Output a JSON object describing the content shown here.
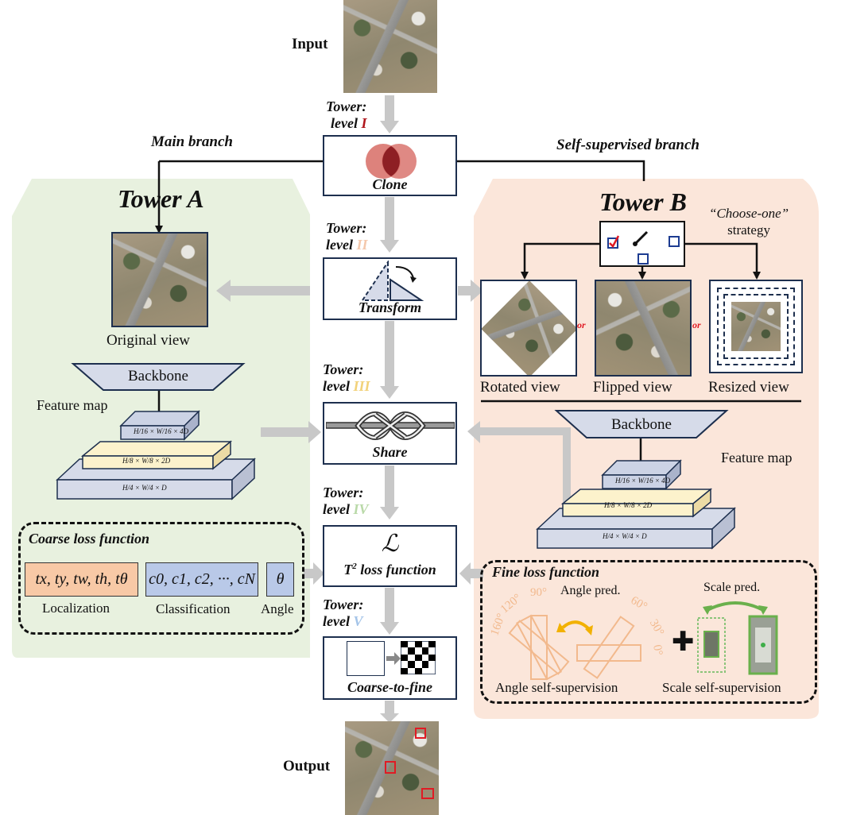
{
  "flow": {
    "input_label": "Input",
    "output_label": "Output",
    "levels": [
      {
        "prefix": "Tower:",
        "word": "level",
        "numeral": "I",
        "color": "#b0161c"
      },
      {
        "prefix": "Tower:",
        "word": "level",
        "numeral": "II",
        "color": "#f4c8ac"
      },
      {
        "prefix": "Tower:",
        "word": "level",
        "numeral": "III",
        "color": "#f2d27a"
      },
      {
        "prefix": "Tower:",
        "word": "level",
        "numeral": "IV",
        "color": "#b9d9a8"
      },
      {
        "prefix": "Tower:",
        "word": "level",
        "numeral": "V",
        "color": "#a4c4e8"
      }
    ],
    "blocks": {
      "clone": "Clone",
      "transform": "Transform",
      "share": "Share",
      "loss_symbol": "ℒ",
      "loss_prefix": "T",
      "loss_superscript": "2",
      "loss_label": "loss function",
      "coarse_to_fine": "Coarse-to-fine"
    }
  },
  "branches": {
    "main": "Main branch",
    "self_supervised": "Self-supervised branch"
  },
  "tower_a": {
    "title": "Tower A",
    "original_view": "Original view",
    "backbone": "Backbone",
    "feature_map": "Feature map",
    "fm_levels": [
      "H/16 × W/16 × 4D",
      "H/8 × W/8 × 2D",
      "H/4 × W/4 × D"
    ],
    "coarse_loss": {
      "title": "Coarse loss function",
      "localization_formula": "tx, ty, tw, th, tθ",
      "classification_formula": "c0, c1, c2, ···, cN",
      "angle_formula": "θ",
      "localization_label": "Localization",
      "classification_label": "Classification",
      "angle_label": "Angle"
    }
  },
  "tower_b": {
    "title": "Tower B",
    "strategy_line1": "“Choose-one”",
    "strategy_line2": "strategy",
    "or_text": "or",
    "views": [
      "Rotated view",
      "Flipped view",
      "Resized view"
    ],
    "backbone": "Backbone",
    "feature_map": "Feature map",
    "fm_levels": [
      "H/16 × W/16 × 4D",
      "H/8 × W/8 × 2D",
      "H/4 × W/4 × D"
    ],
    "fine_loss": {
      "title": "Fine loss function",
      "angle_pred": "Angle pred.",
      "scale_pred": "Scale pred.",
      "angle_ticks": [
        "160°",
        "120°",
        "90°",
        "60°",
        "30°",
        "0°"
      ],
      "angle_self": "Angle self-supervision",
      "scale_self": "Scale self-supervision"
    }
  },
  "colors": {
    "tower_a_bg": "#e8f1df",
    "tower_b_bg": "#fbe6da",
    "box_border": "#1d2f4e",
    "arrow_gray": "#c8c8c8",
    "fm_top": "#ccd3e5",
    "fm_mid": "#fcf2cc",
    "fm_base": "#d6dbe9",
    "loc_chip": "#f8c9a6",
    "cls_chip": "#b9c9e8",
    "angle_orange": "#f2b98d",
    "green": "#6ab04c"
  }
}
